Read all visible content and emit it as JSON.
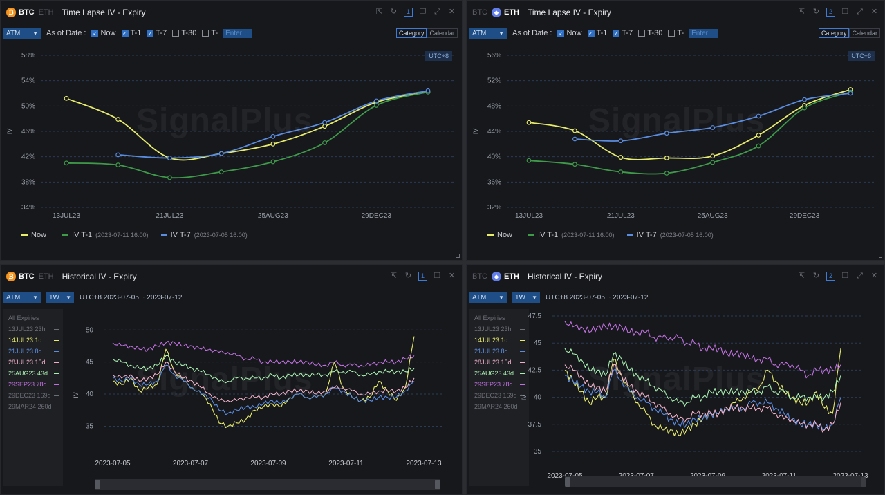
{
  "panels": {
    "tl_btc": {
      "coin_a": "BTC",
      "coin_b": "ETH",
      "active": "a",
      "title": "Time Lapse IV - Expiry",
      "num": "1",
      "select": "ATM",
      "as_of": "As of Date :",
      "checks": [
        {
          "label": "Now",
          "on": true
        },
        {
          "label": "T-1",
          "on": true
        },
        {
          "label": "T-7",
          "on": true
        },
        {
          "label": "T-30",
          "on": false
        },
        {
          "label": "T-",
          "on": false
        }
      ],
      "enter_placeholder": "Enter",
      "seg": [
        "Category",
        "Calendar"
      ],
      "utc": "UTC+8",
      "ylabel": "IV",
      "legend": [
        {
          "label": "Now",
          "sub": "",
          "color": "#e8ec6c"
        },
        {
          "label": "IV T-1",
          "sub": "(2023-07-11 16:00)",
          "color": "#3f9a4a"
        },
        {
          "label": "IV T-7",
          "sub": "(2023-07-05 16:00)",
          "color": "#5a8ce0"
        }
      ]
    },
    "tl_eth": {
      "coin_a": "BTC",
      "coin_b": "ETH",
      "active": "b",
      "title": "Time Lapse IV - Expiry",
      "num": "2",
      "select": "ATM",
      "as_of": "As of Date :",
      "checks": [
        {
          "label": "Now",
          "on": true
        },
        {
          "label": "T-1",
          "on": true
        },
        {
          "label": "T-7",
          "on": true
        },
        {
          "label": "T-30",
          "on": false
        },
        {
          "label": "T-",
          "on": false
        }
      ],
      "enter_placeholder": "Enter",
      "seg": [
        "Category",
        "Calendar"
      ],
      "utc": "UTC+8",
      "ylabel": "IV",
      "legend": [
        {
          "label": "Now",
          "sub": "",
          "color": "#e8ec6c"
        },
        {
          "label": "IV T-1",
          "sub": "(2023-07-11 16:00)",
          "color": "#3f9a4a"
        },
        {
          "label": "IV T-7",
          "sub": "(2023-07-05 16:00)",
          "color": "#5a8ce0"
        }
      ]
    },
    "hi_btc": {
      "coin_a": "BTC",
      "coin_b": "ETH",
      "active": "a",
      "title": "Historical IV - Expiry",
      "num": "1",
      "select": "ATM",
      "select2": "1W",
      "range": "UTC+8 2023-07-05 ~ 2023-07-12",
      "ylabel": "IV",
      "expiries": [
        {
          "label": "All Expiries",
          "color": "#6c6f78",
          "dim": true,
          "swatch": false
        },
        {
          "label": "13JUL23 23h",
          "color": "#6c6f78",
          "dim": true,
          "swatch": true
        },
        {
          "label": "14JUL23 1d",
          "color": "#e8ec6c",
          "dim": false,
          "swatch": true
        },
        {
          "label": "21JUL23 8d",
          "color": "#5a8ce0",
          "dim": false,
          "swatch": true
        },
        {
          "label": "28JUL23 15d",
          "color": "#f0b0c8",
          "dim": false,
          "swatch": true
        },
        {
          "label": "25AUG23 43d",
          "color": "#a8f0b0",
          "dim": false,
          "swatch": true
        },
        {
          "label": "29SEP23 78d",
          "color": "#c070e0",
          "dim": false,
          "swatch": true
        },
        {
          "label": "29DEC23 169d",
          "color": "#6c6f78",
          "dim": true,
          "swatch": true
        },
        {
          "label": "29MAR24 260d",
          "color": "#6c6f78",
          "dim": true,
          "swatch": true
        }
      ]
    },
    "hi_eth": {
      "coin_a": "BTC",
      "coin_b": "ETH",
      "active": "b",
      "title": "Historical IV - Expiry",
      "num": "2",
      "select": "ATM",
      "select2": "1W",
      "range": "UTC+8 2023-07-05 ~ 2023-07-12",
      "ylabel": "IV",
      "expiries": [
        {
          "label": "All Expiries",
          "color": "#6c6f78",
          "dim": true,
          "swatch": false
        },
        {
          "label": "13JUL23 23h",
          "color": "#6c6f78",
          "dim": true,
          "swatch": true
        },
        {
          "label": "14JUL23 1d",
          "color": "#e8ec6c",
          "dim": false,
          "swatch": true
        },
        {
          "label": "21JUL23 8d",
          "color": "#5a8ce0",
          "dim": false,
          "swatch": true
        },
        {
          "label": "28JUL23 15d",
          "color": "#f0b0c8",
          "dim": false,
          "swatch": true
        },
        {
          "label": "25AUG23 43d",
          "color": "#a8f0b0",
          "dim": false,
          "swatch": true
        },
        {
          "label": "29SEP23 78d",
          "color": "#c070e0",
          "dim": false,
          "swatch": true
        },
        {
          "label": "29DEC23 169d",
          "color": "#6c6f78",
          "dim": true,
          "swatch": true
        },
        {
          "label": "29MAR24 260d",
          "color": "#6c6f78",
          "dim": true,
          "swatch": true
        }
      ]
    }
  },
  "watermark": "SignalPlus",
  "chart_data": [
    {
      "type": "line",
      "panel": "tl_btc",
      "categories": [
        "13JUL23",
        "21JUL23",
        "25AUG23",
        "29DEC23"
      ],
      "x": [
        0,
        1,
        2,
        3,
        4,
        5,
        6,
        7
      ],
      "x_tick_at": [
        0,
        2,
        4,
        6
      ],
      "yticks": [
        "34%",
        "38%",
        "42%",
        "46%",
        "50%",
        "54%",
        "58%"
      ],
      "ylim": [
        34,
        58
      ],
      "series": [
        {
          "name": "Now",
          "color": "#e8ec6c",
          "values": [
            [
              0,
              51.2
            ],
            [
              1,
              47.9
            ],
            [
              2,
              41.8
            ],
            [
              3,
              42.5
            ],
            [
              4,
              44.0
            ],
            [
              5,
              46.8
            ],
            [
              6,
              50.6
            ],
            [
              7,
              52.2
            ]
          ]
        },
        {
          "name": "IV T-1",
          "color": "#3f9a4a",
          "values": [
            [
              0,
              41.0
            ],
            [
              1,
              40.7
            ],
            [
              2,
              38.7
            ],
            [
              3,
              39.6
            ],
            [
              4,
              41.2
            ],
            [
              5,
              44.2
            ],
            [
              6,
              50.1
            ],
            [
              7,
              52.2
            ]
          ]
        },
        {
          "name": "IV T-7",
          "color": "#5a8ce0",
          "values": [
            [
              1,
              42.3
            ],
            [
              2,
              41.8
            ],
            [
              3,
              42.5
            ],
            [
              4,
              45.2
            ],
            [
              5,
              47.4
            ],
            [
              6,
              50.8
            ],
            [
              7,
              52.4
            ]
          ]
        }
      ]
    },
    {
      "type": "line",
      "panel": "tl_eth",
      "categories": [
        "13JUL23",
        "21JUL23",
        "25AUG23",
        "29DEC23"
      ],
      "x": [
        0,
        1,
        2,
        3,
        4,
        5,
        6,
        7
      ],
      "x_tick_at": [
        0,
        2,
        4,
        6
      ],
      "yticks": [
        "32%",
        "36%",
        "40%",
        "44%",
        "48%",
        "52%",
        "56%"
      ],
      "ylim": [
        32,
        56
      ],
      "series": [
        {
          "name": "Now",
          "color": "#e8ec6c",
          "values": [
            [
              0,
              45.4
            ],
            [
              1,
              44.1
            ],
            [
              2,
              39.9
            ],
            [
              3,
              39.8
            ],
            [
              4,
              40.1
            ],
            [
              5,
              43.4
            ],
            [
              6,
              48.1
            ],
            [
              7,
              50.6
            ]
          ]
        },
        {
          "name": "IV T-1",
          "color": "#3f9a4a",
          "values": [
            [
              0,
              39.4
            ],
            [
              1,
              38.8
            ],
            [
              2,
              37.6
            ],
            [
              3,
              37.4
            ],
            [
              4,
              39.1
            ],
            [
              5,
              41.7
            ],
            [
              6,
              47.7
            ],
            [
              7,
              50.2
            ]
          ]
        },
        {
          "name": "IV T-7",
          "color": "#5a8ce0",
          "values": [
            [
              1,
              42.8
            ],
            [
              2,
              42.5
            ],
            [
              3,
              43.7
            ],
            [
              4,
              44.6
            ],
            [
              5,
              46.4
            ],
            [
              6,
              49.0
            ],
            [
              7,
              50.0
            ]
          ]
        }
      ]
    },
    {
      "type": "line",
      "panel": "hi_btc",
      "xticks": [
        "2023-07-05",
        "2023-07-07",
        "2023-07-09",
        "2023-07-11",
        "2023-07-13"
      ],
      "yticks": [
        "35",
        "40",
        "45",
        "50"
      ],
      "ylim": [
        33,
        51
      ],
      "series": [
        {
          "name": "14JUL23 1d",
          "color": "#e8ec6c",
          "values": [
            42.0,
            41.5,
            42.5,
            40.5,
            41.0,
            41.5,
            47.0,
            43.5,
            42.0,
            41.0,
            40.0,
            38.5,
            35.5,
            35.0,
            35.5,
            36.0,
            37.5,
            38.0,
            38.5,
            38.0,
            39.5,
            40.0,
            39.5,
            39.5,
            40.0,
            45.0,
            41.0,
            39.5,
            39.0,
            39.5,
            42.0,
            40.5,
            39.0,
            41.0,
            49.0
          ]
        },
        {
          "name": "21JUL23 8d",
          "color": "#5a8ce0",
          "values": [
            42.5,
            42.0,
            42.5,
            41.5,
            41.5,
            42.0,
            44.5,
            43.0,
            42.0,
            41.0,
            40.0,
            39.5,
            37.5,
            37.0,
            37.5,
            38.0,
            38.0,
            38.5,
            39.0,
            38.5,
            39.5,
            40.0,
            39.5,
            39.5,
            40.0,
            41.0,
            40.5,
            39.5,
            39.0,
            39.0,
            39.5,
            39.5,
            39.5,
            40.5,
            42.0
          ]
        },
        {
          "name": "28JUL23 15d",
          "color": "#f0b0c8",
          "values": [
            43.0,
            42.5,
            43.0,
            42.0,
            42.5,
            43.0,
            45.0,
            43.5,
            42.5,
            42.0,
            41.0,
            40.0,
            39.0,
            39.0,
            39.0,
            39.5,
            39.5,
            39.5,
            40.0,
            40.0,
            40.5,
            40.5,
            40.5,
            40.0,
            40.5,
            41.0,
            41.0,
            40.5,
            40.0,
            40.0,
            40.5,
            40.5,
            40.5,
            41.0,
            42.5
          ]
        },
        {
          "name": "25AUG23 43d",
          "color": "#a8f0b0",
          "values": [
            45.5,
            45.0,
            44.5,
            44.0,
            44.0,
            44.5,
            46.0,
            45.0,
            44.5,
            44.0,
            43.5,
            43.0,
            42.0,
            42.0,
            42.5,
            42.5,
            42.5,
            42.5,
            43.0,
            42.5,
            43.0,
            43.0,
            43.0,
            43.0,
            43.0,
            43.5,
            43.5,
            43.5,
            43.0,
            43.0,
            43.5,
            43.5,
            43.5,
            43.5,
            44.0
          ]
        },
        {
          "name": "29SEP23 78d",
          "color": "#c070e0",
          "values": [
            48.0,
            47.5,
            47.5,
            47.0,
            47.0,
            47.5,
            48.0,
            48.0,
            47.5,
            47.5,
            47.0,
            47.0,
            46.5,
            46.5,
            46.0,
            45.5,
            45.5,
            45.0,
            45.0,
            45.0,
            45.0,
            45.0,
            45.0,
            44.5,
            44.5,
            45.0,
            44.5,
            44.5,
            44.5,
            44.5,
            45.0,
            45.0,
            45.0,
            45.5,
            46.0
          ]
        }
      ]
    },
    {
      "type": "line",
      "panel": "hi_eth",
      "xticks": [
        "2023-07-05",
        "2023-07-07",
        "2023-07-09",
        "2023-07-11",
        "2023-07-13"
      ],
      "yticks": [
        "35",
        "37.5",
        "40",
        "42.5",
        "45",
        "47.5"
      ],
      "ylim": [
        35,
        47.5
      ],
      "series": [
        {
          "name": "14JUL23 1d",
          "color": "#e8ec6c",
          "values": [
            42.5,
            41.5,
            40.5,
            39.5,
            40.0,
            40.0,
            43.5,
            42.0,
            40.5,
            39.5,
            38.5,
            37.5,
            37.0,
            37.0,
            36.5,
            37.0,
            37.5,
            38.0,
            38.5,
            38.5,
            39.0,
            39.5,
            40.0,
            40.5,
            41.0,
            42.5,
            41.5,
            40.5,
            40.0,
            39.5,
            39.5,
            40.5,
            39.0,
            38.5,
            44.5
          ]
        },
        {
          "name": "21JUL23 8d",
          "color": "#5a8ce0",
          "values": [
            42.0,
            41.5,
            41.0,
            40.5,
            40.5,
            40.0,
            42.5,
            41.5,
            40.5,
            40.0,
            39.5,
            39.0,
            38.5,
            38.0,
            37.5,
            37.5,
            38.0,
            38.0,
            38.5,
            38.5,
            39.0,
            39.0,
            39.0,
            39.5,
            39.5,
            39.5,
            39.0,
            38.5,
            38.0,
            37.5,
            37.5,
            37.5,
            37.0,
            37.5,
            40.0
          ]
        },
        {
          "name": "28JUL23 15d",
          "color": "#f0b0c8",
          "values": [
            43.0,
            42.5,
            42.0,
            41.0,
            41.0,
            40.5,
            43.0,
            42.0,
            41.0,
            40.5,
            40.0,
            39.5,
            39.0,
            38.5,
            38.0,
            38.0,
            38.5,
            38.5,
            38.5,
            38.5,
            39.0,
            39.0,
            39.0,
            39.0,
            39.0,
            39.0,
            38.5,
            38.0,
            38.0,
            37.5,
            37.5,
            37.5,
            37.0,
            37.5,
            39.5
          ]
        },
        {
          "name": "25AUG23 43d",
          "color": "#a8f0b0",
          "values": [
            44.5,
            44.0,
            43.5,
            42.5,
            42.5,
            42.0,
            44.0,
            43.5,
            42.5,
            42.0,
            41.5,
            41.0,
            40.5,
            40.0,
            39.5,
            39.5,
            40.0,
            40.0,
            40.5,
            40.5,
            40.5,
            40.5,
            40.5,
            40.5,
            40.5,
            41.0,
            40.5,
            40.5,
            40.0,
            40.0,
            40.0,
            40.0,
            40.0,
            40.5,
            42.0
          ]
        },
        {
          "name": "29SEP23 78d",
          "color": "#c070e0",
          "values": [
            47.0,
            46.5,
            46.5,
            46.0,
            46.5,
            46.5,
            46.5,
            46.5,
            46.0,
            46.0,
            46.0,
            45.5,
            45.5,
            45.5,
            45.5,
            45.0,
            45.0,
            44.5,
            44.5,
            44.5,
            44.0,
            44.0,
            44.0,
            43.5,
            43.5,
            43.5,
            43.0,
            43.0,
            43.0,
            42.5,
            42.0,
            42.5,
            42.5,
            42.5,
            43.0
          ]
        }
      ]
    }
  ]
}
